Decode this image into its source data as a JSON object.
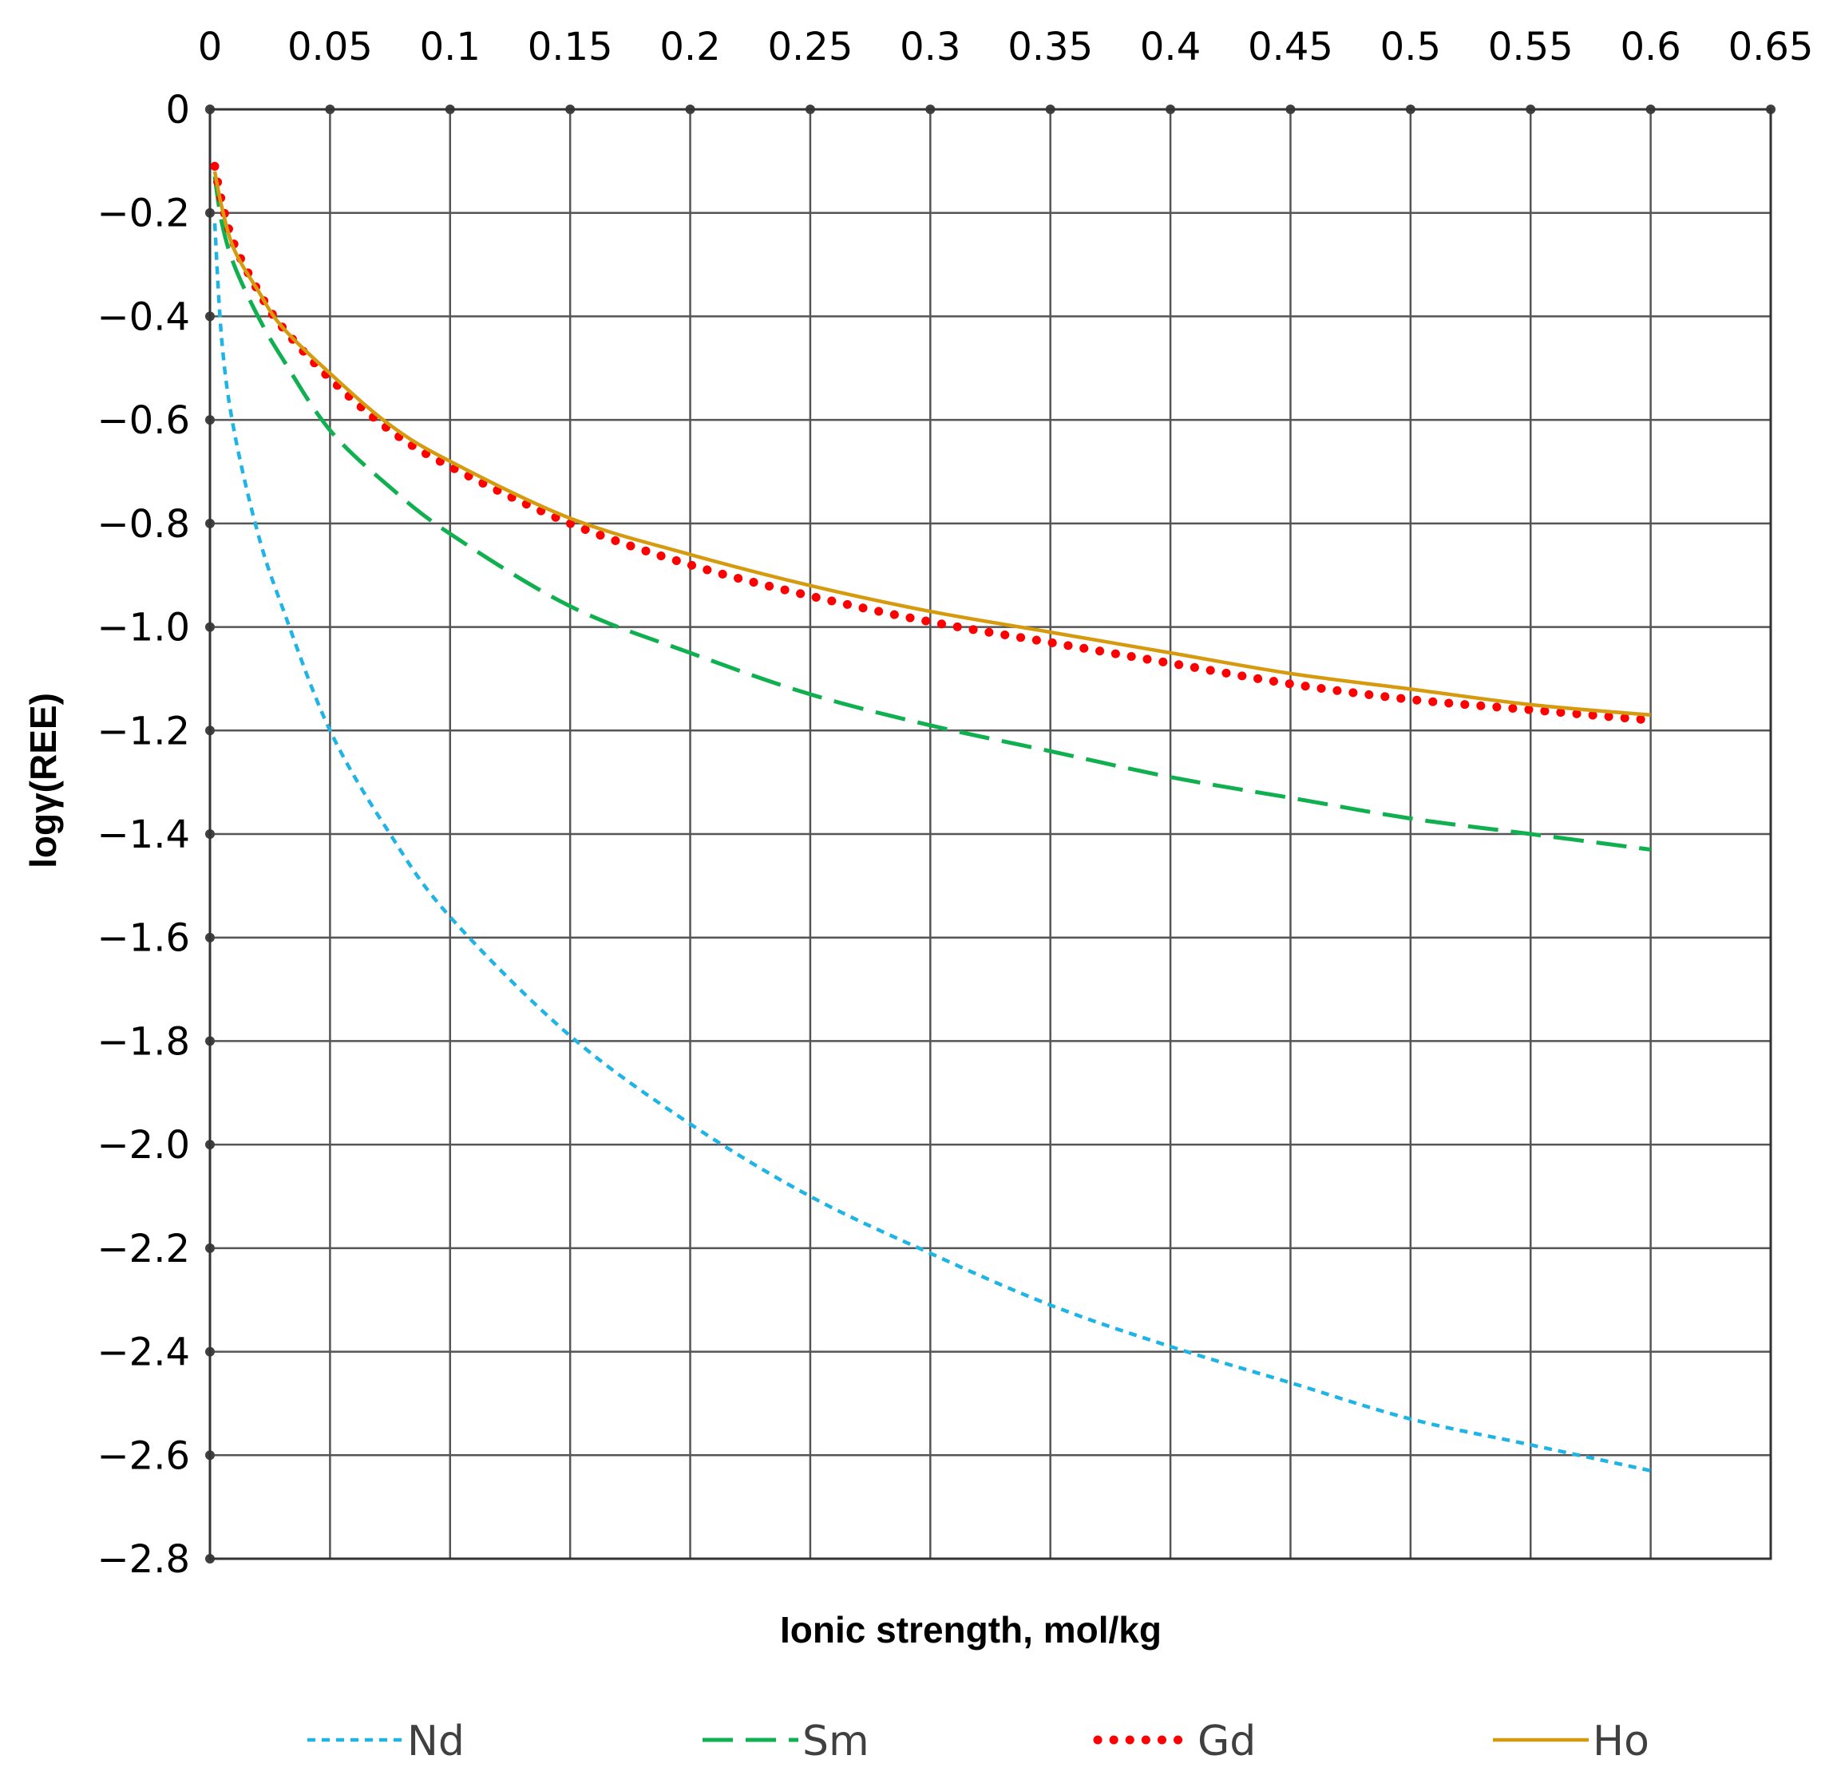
{
  "chart_data": {
    "type": "line",
    "title": "",
    "xlabel": "Ionic strength, mol/kg",
    "ylabel": "logγ(REE)",
    "xlim": [
      0,
      0.65
    ],
    "ylim": [
      -2.8,
      0
    ],
    "x_ticks": [
      "0",
      "0.05",
      "0.1",
      "0.15",
      "0.2",
      "0.25",
      "0.3",
      "0.35",
      "0.4",
      "0.45",
      "0.5",
      "0.55",
      "0.6",
      "0.65"
    ],
    "y_ticks": [
      "0",
      "−0.2",
      "−0.4",
      "−0.6",
      "−0.8",
      "−1.0",
      "−1.2",
      "−1.4",
      "−1.6",
      "−1.8",
      "−2.0",
      "−2.2",
      "−2.4",
      "−2.6",
      "−2.8"
    ],
    "grid": true,
    "x_axis_position": "top",
    "legend_position": "bottom",
    "x": [
      0.002,
      0.005,
      0.01,
      0.02,
      0.03,
      0.05,
      0.075,
      0.1,
      0.15,
      0.2,
      0.25,
      0.3,
      0.35,
      0.4,
      0.45,
      0.5,
      0.55,
      0.6
    ],
    "series": [
      {
        "name": "Nd",
        "color": "#1fb4e6",
        "style": "short-dash",
        "values": [
          -0.22,
          -0.45,
          -0.62,
          -0.82,
          -0.96,
          -1.2,
          -1.4,
          -1.56,
          -1.79,
          -1.96,
          -2.1,
          -2.21,
          -2.31,
          -2.39,
          -2.46,
          -2.53,
          -2.58,
          -2.63
        ]
      },
      {
        "name": "Sm",
        "color": "#10b050",
        "style": "long-dash",
        "values": [
          -0.13,
          -0.22,
          -0.3,
          -0.4,
          -0.48,
          -0.62,
          -0.73,
          -0.82,
          -0.96,
          -1.05,
          -1.13,
          -1.19,
          -1.24,
          -1.29,
          -1.33,
          -1.37,
          -1.4,
          -1.43
        ]
      },
      {
        "name": "Gd",
        "color": "#ff0000",
        "style": "dotted",
        "values": [
          -0.11,
          -0.18,
          -0.26,
          -0.35,
          -0.42,
          -0.52,
          -0.62,
          -0.69,
          -0.8,
          -0.88,
          -0.94,
          -0.99,
          -1.03,
          -1.07,
          -1.11,
          -1.14,
          -1.16,
          -1.18
        ]
      },
      {
        "name": "Ho",
        "color": "#d69a0e",
        "style": "solid",
        "values": [
          -0.12,
          -0.19,
          -0.27,
          -0.35,
          -0.42,
          -0.51,
          -0.61,
          -0.68,
          -0.79,
          -0.86,
          -0.92,
          -0.97,
          -1.01,
          -1.05,
          -1.09,
          -1.12,
          -1.15,
          -1.17
        ]
      }
    ]
  }
}
